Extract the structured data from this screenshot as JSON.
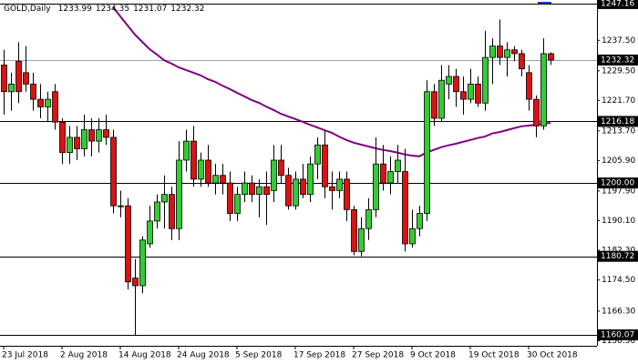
{
  "chart_data": {
    "type": "candlestick",
    "symbol": "GOLD,Daily",
    "categories": [
      "23 Jul 2018",
      null,
      null,
      null,
      null,
      null,
      null,
      null,
      "2 Aug 2018",
      null,
      null,
      null,
      null,
      null,
      null,
      null,
      "14 Aug 2018",
      null,
      null,
      null,
      null,
      null,
      null,
      null,
      "24 Aug 2018",
      null,
      null,
      null,
      null,
      null,
      null,
      null,
      "5 Sep 2018",
      null,
      null,
      null,
      null,
      null,
      null,
      null,
      "17 Sep 2018",
      null,
      null,
      null,
      null,
      null,
      null,
      null,
      "27 Sep 2018",
      null,
      null,
      null,
      null,
      null,
      null,
      null,
      "9 Oct 2018",
      null,
      null,
      null,
      null,
      null,
      null,
      null,
      "19 Oct 2018",
      null,
      null,
      null,
      null,
      null,
      null,
      null,
      "30 Oct 2018",
      null,
      null,
      null
    ],
    "open": [
      1231,
      1224,
      1232,
      1229,
      1226,
      1222,
      1220,
      1224,
      1216,
      1208,
      1212,
      1209,
      1214,
      1211,
      1214,
      1212,
      1194,
      1194,
      1175,
      1173,
      1184,
      1190,
      1195,
      1197,
      1188,
      1206,
      1211,
      1201,
      1206,
      1200,
      1202,
      1200,
      1192,
      1197,
      1200,
      1197,
      1199,
      1198,
      1206,
      1202,
      1194,
      1201,
      1197,
      1205,
      1210,
      1199,
      1198,
      1201,
      1193,
      1182,
      1188,
      1193,
      1205,
      1200,
      1203,
      1203,
      1184,
      1188,
      1192,
      1224,
      1217,
      1226,
      1228,
      1224,
      1222,
      1226,
      1221,
      1233,
      1236,
      1233,
      1235,
      1234,
      1229,
      1222,
      1215,
      1233.99
    ],
    "high": [
      1235,
      1229,
      1237,
      1236,
      1229,
      1226,
      1224,
      1226,
      1217,
      1215,
      1215,
      1218,
      1217,
      1217,
      1218,
      1214,
      1198,
      1196,
      1180,
      1186,
      1194,
      1197,
      1202,
      1199,
      1211,
      1214,
      1215,
      1208,
      1210,
      1205,
      1205,
      1203,
      1199,
      1203,
      1202,
      1201,
      1203,
      1210,
      1210,
      1204,
      1203,
      1205,
      1207,
      1212,
      1214,
      1203,
      1203,
      1203,
      1194,
      1191,
      1196,
      1212,
      1210,
      1207,
      1210,
      1209,
      1193,
      1194,
      1227,
      1226,
      1231,
      1231,
      1230,
      1228,
      1230,
      1228,
      1240,
      1238,
      1243,
      1237,
      1236,
      1235,
      1231,
      1223,
      1238,
      1234.35
    ],
    "low": [
      1218,
      1219,
      1221,
      1224,
      1219,
      1217,
      1216,
      1214,
      1205,
      1205,
      1206,
      1207,
      1207,
      1208,
      1210,
      1192,
      1191,
      1172,
      1160.07,
      1171,
      1183,
      1188,
      1188,
      1185,
      1185,
      1203,
      1199,
      1199,
      1199,
      1197,
      1197,
      1190,
      1190,
      1195,
      1195,
      1191,
      1189,
      1195,
      1200,
      1193,
      1193,
      1196,
      1195,
      1201,
      1196,
      1193,
      1196,
      1190,
      1181,
      1180.72,
      1185,
      1191,
      1198,
      1197,
      1200,
      1182,
      1183,
      1186,
      1190,
      1215,
      1216,
      1222,
      1220,
      1218,
      1221,
      1220,
      1219,
      1226,
      1231,
      1228,
      1232,
      1228,
      1219,
      1212,
      1214,
      1231.07
    ],
    "close": [
      1224,
      1226,
      1224,
      1226,
      1222,
      1220,
      1222,
      1216,
      1208,
      1212,
      1209,
      1214,
      1211,
      1214,
      1212,
      1194,
      1194,
      1174,
      1173,
      1185,
      1190,
      1195,
      1197,
      1188,
      1206,
      1211,
      1201,
      1206,
      1200,
      1202,
      1200,
      1192,
      1197,
      1200,
      1197,
      1199,
      1197,
      1206,
      1202,
      1194,
      1201,
      1197,
      1205,
      1210,
      1199,
      1198,
      1201,
      1193,
      1182,
      1188,
      1193,
      1205,
      1200,
      1203,
      1206,
      1184,
      1188,
      1192,
      1224,
      1217,
      1227,
      1228,
      1224,
      1222,
      1226,
      1221,
      1233,
      1236,
      1233,
      1235,
      1234,
      1230,
      1222,
      1215,
      1234,
      1232.32
    ],
    "up_color": "#33cc33",
    "down_color": "#dd1111",
    "ma": {
      "color": "#800080",
      "values": [
        null,
        null,
        null,
        null,
        null,
        null,
        null,
        null,
        null,
        null,
        null,
        null,
        null,
        null,
        null,
        1246.2,
        1243.8,
        1241.4,
        1239.0,
        1237.1,
        1235.2,
        1233.8,
        1232.3,
        1231.4,
        1230.4,
        1229.7,
        1229.0,
        1228.3,
        1227.3,
        1226.6,
        1225.6,
        1224.7,
        1223.7,
        1222.8,
        1221.8,
        1221.1,
        1220.1,
        1219.2,
        1218.2,
        1217.5,
        1216.8,
        1216.1,
        1215.3,
        1214.6,
        1213.9,
        1213.2,
        1212.2,
        1211.3,
        1210.6,
        1210.1,
        1209.6,
        1209.1,
        1208.7,
        1208.4,
        1208.0,
        1207.5,
        1207.2,
        1207.0,
        1208.0,
        1208.7,
        1209.4,
        1209.9,
        1210.3,
        1210.8,
        1211.3,
        1211.8,
        1212.2,
        1213.0,
        1213.4,
        1213.9,
        1214.4,
        1214.9,
        1215.1,
        1215.3,
        1215.6,
        1215.8
      ]
    },
    "ylim": [
      1157.2,
      1248.1
    ],
    "yticks": [
      {
        "value": 1237.5,
        "label": "1237.50"
      },
      {
        "value": 1229.5,
        "label": "1229.50"
      },
      {
        "value": 1221.7,
        "label": "1221.70"
      },
      {
        "value": 1213.7,
        "label": "1213.70"
      },
      {
        "value": 1205.9,
        "label": "1205.90"
      },
      {
        "value": 1197.9,
        "label": "1197.90"
      },
      {
        "value": 1190.1,
        "label": "1190.10"
      },
      {
        "value": 1182.3,
        "label": "1182.30"
      },
      {
        "value": 1174.5,
        "label": "1174.50"
      },
      {
        "value": 1166.3,
        "label": "1166.30"
      },
      {
        "value": 1158.5,
        "label": "1158.50"
      }
    ],
    "levels": [
      1247.16,
      1232.32,
      1216.18,
      {
        "value": 1200,
        "label": "1200.00"
      },
      1180.72,
      1160.07
    ],
    "bid_level_color": "#9aa8a8",
    "level_color": "#000000"
  }
}
